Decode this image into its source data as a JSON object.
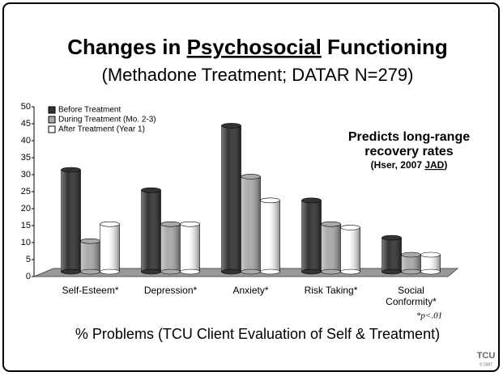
{
  "chart_data": {
    "type": "bar",
    "title": [
      "Changes in ",
      "Psychosocial",
      " Functioning"
    ],
    "subtitle": "(Methadone Treatment; DATAR N=279)",
    "annotation": [
      "Predicts long-range",
      "recovery rates"
    ],
    "citation": [
      "(Hser, 2007 ",
      "JAD",
      ")"
    ],
    "footnote": "*p<.01",
    "x_label": "% Problems (TCU Client Evaluation of Self & Treatment)",
    "logo": "TCU",
    "logo_note": "© 2007",
    "categories": [
      "Self-Esteem*",
      "Depression*",
      "Anxiety*",
      "Risk Taking*",
      "Social Conformity*"
    ],
    "series": [
      {
        "name": "Before Treatment",
        "color": "#333333",
        "values": [
          30,
          24,
          43,
          21,
          10
        ]
      },
      {
        "name": "During Treatment (Mo. 2-3)",
        "color": "#aaaaaa",
        "values": [
          9,
          14,
          28,
          14,
          5
        ]
      },
      {
        "name": "After Treatment (Year 1)",
        "color": "#ffffff",
        "values": [
          14,
          14,
          21,
          13,
          5
        ]
      }
    ],
    "ylim": [
      0,
      50
    ],
    "yticks": [
      0,
      5,
      10,
      15,
      20,
      25,
      30,
      35,
      40,
      45,
      50
    ],
    "legend": "top-left"
  }
}
